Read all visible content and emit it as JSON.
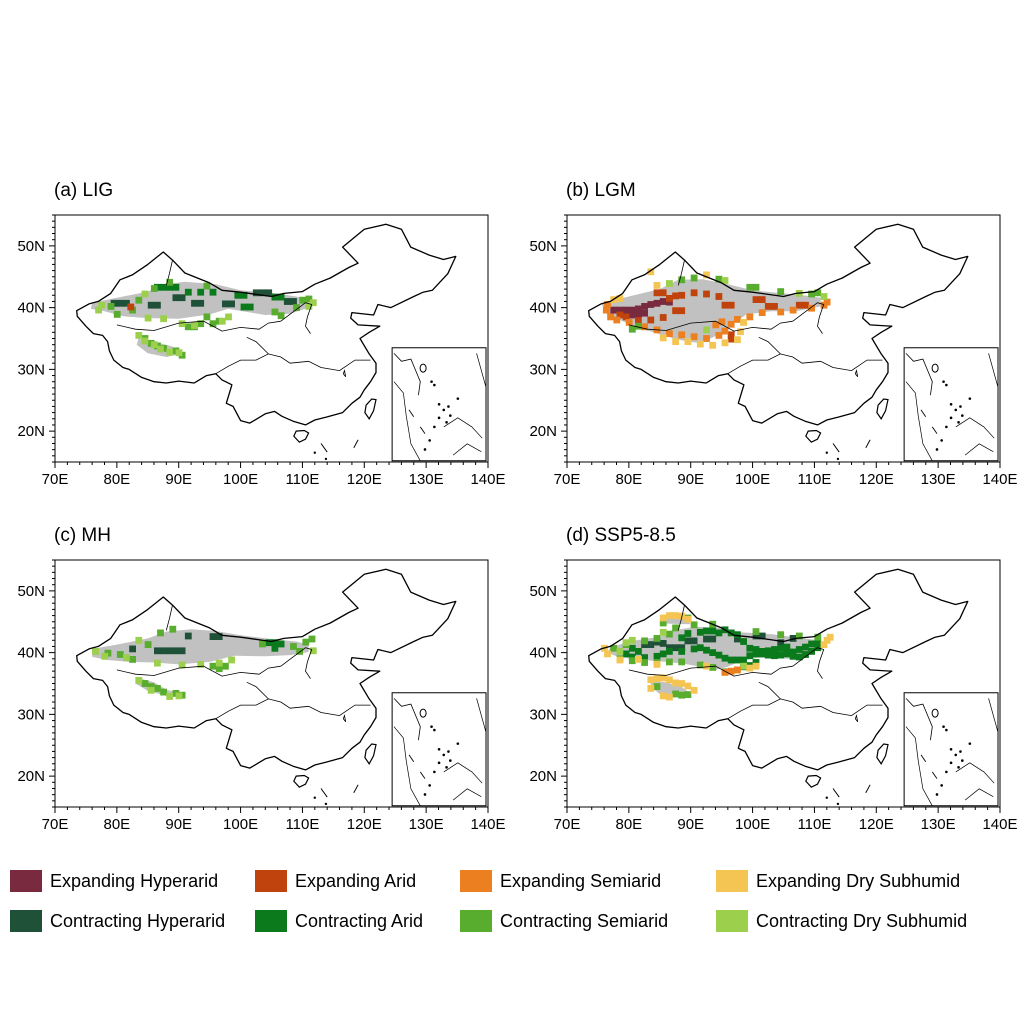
{
  "panels": [
    {
      "title": "(a) LIG",
      "inset": true
    },
    {
      "title": "(b) LGM",
      "inset": true
    },
    {
      "title": "(c) MH",
      "inset": true
    },
    {
      "title": "(d) SSP5-8.5",
      "inset": true
    }
  ],
  "axes": {
    "lon_labels": [
      "70E",
      "80E",
      "90E",
      "100E",
      "110E",
      "120E",
      "130E",
      "140E"
    ],
    "lat_labels": [
      "50N",
      "40N",
      "30N",
      "20N"
    ],
    "lon_range": [
      70,
      140
    ],
    "lat_range": [
      15,
      55
    ]
  },
  "legend": [
    {
      "label": "Expanding Hyperarid",
      "color": "#7a2a3e"
    },
    {
      "label": "Expanding Arid",
      "color": "#c0430d"
    },
    {
      "label": "Expanding Semiarid",
      "color": "#ec8021"
    },
    {
      "label": "Expanding Dry Subhumid",
      "color": "#f4c553"
    },
    {
      "label": "Contracting Hyperarid",
      "color": "#1f5038"
    },
    {
      "label": "Contracting Arid",
      "color": "#0b7a1c"
    },
    {
      "label": "Contracting Semiarid",
      "color": "#58ac2e"
    },
    {
      "label": "Contracting Dry Subhumid",
      "color": "#9ccf4c"
    }
  ],
  "colors": {
    "drylands_gray": "#c1c1c1",
    "background": "#ffffff",
    "outline": "#000000"
  }
}
